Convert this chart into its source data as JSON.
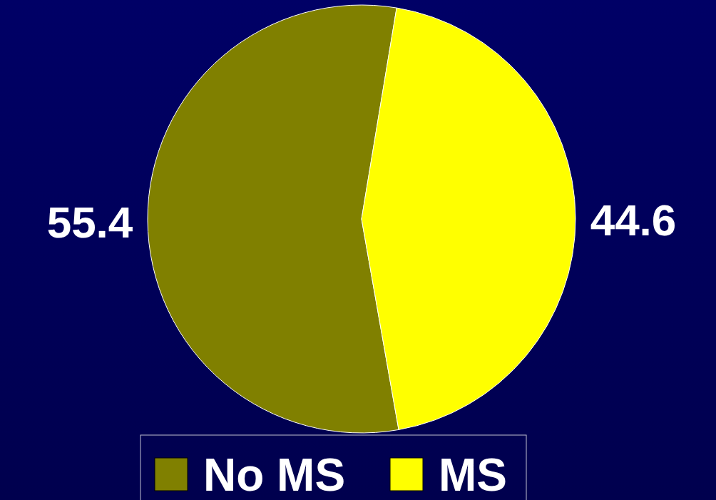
{
  "chart_data": {
    "type": "pie",
    "categories": [
      "No MS",
      "MS"
    ],
    "values": [
      55.4,
      44.6
    ],
    "colors": [
      "#808000",
      "#ffff00"
    ],
    "data_labels": true,
    "legend": "bottom"
  }
}
